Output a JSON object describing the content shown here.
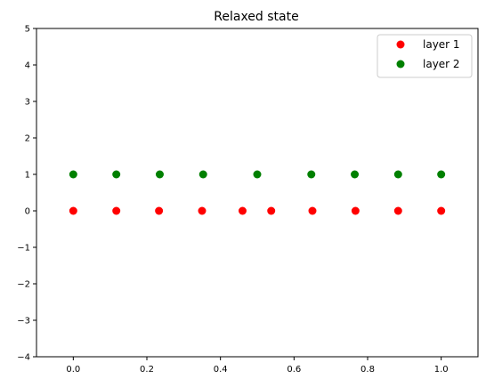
{
  "chart_data": {
    "type": "scatter",
    "title": "Relaxed state",
    "xlabel": "",
    "ylabel": "",
    "xlim": [
      -0.1,
      1.1
    ],
    "ylim": [
      -4,
      5
    ],
    "xticks": [
      0.0,
      0.2,
      0.4,
      0.6,
      0.8,
      1.0
    ],
    "xtick_labels": [
      "0.0",
      "0.2",
      "0.4",
      "0.6",
      "0.8",
      "1.0"
    ],
    "yticks": [
      -4,
      -3,
      -2,
      -1,
      0,
      1,
      2,
      3,
      4,
      5
    ],
    "ytick_labels": [
      "−4",
      "−3",
      "−2",
      "−1",
      "0",
      "1",
      "2",
      "3",
      "4",
      "5"
    ],
    "grid": false,
    "legend_position": "top-right",
    "series": [
      {
        "name": "layer 1",
        "color": "#ff0000",
        "x": [
          0.0,
          0.117,
          0.233,
          0.35,
          0.46,
          0.538,
          0.65,
          0.767,
          0.883,
          1.0
        ],
        "y": [
          0,
          0,
          0,
          0,
          0,
          0,
          0,
          0,
          0,
          0
        ]
      },
      {
        "name": "layer 2",
        "color": "#008000",
        "x": [
          0.0,
          0.117,
          0.235,
          0.353,
          0.5,
          0.647,
          0.765,
          0.883,
          1.0
        ],
        "y": [
          1,
          1,
          1,
          1,
          1,
          1,
          1,
          1,
          1
        ]
      }
    ]
  }
}
